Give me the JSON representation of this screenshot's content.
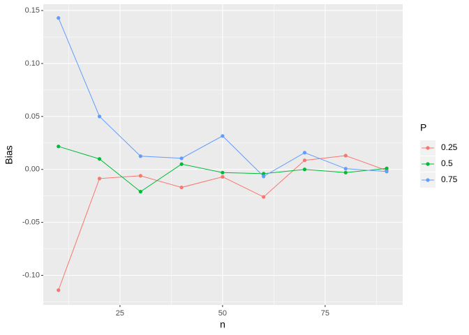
{
  "chart_data": {
    "type": "line",
    "x_label": "n",
    "y_label": "Bias",
    "legend_title": "P",
    "x": [
      10,
      20,
      30,
      40,
      50,
      60,
      70,
      80,
      90
    ],
    "series": [
      {
        "name": "0.25",
        "color": "#F8766D",
        "values": [
          -0.114,
          -0.0086,
          -0.006,
          -0.017,
          -0.007,
          -0.026,
          0.0086,
          0.013,
          -0.001
        ]
      },
      {
        "name": "0.5",
        "color": "#00BA38",
        "values": [
          0.0217,
          0.0099,
          -0.021,
          0.005,
          -0.003,
          -0.004,
          0.0,
          -0.003,
          0.001
        ]
      },
      {
        "name": "0.75",
        "color": "#619CFF",
        "values": [
          0.143,
          0.05,
          0.0125,
          0.0105,
          0.0316,
          -0.0066,
          0.0158,
          0.0007,
          -0.002
        ]
      }
    ],
    "xlim": [
      6.3,
      93.9
    ],
    "xticks": [
      25,
      50,
      75
    ],
    "ylim": [
      -0.128,
      0.156
    ],
    "yticks": [
      {
        "value": -0.1,
        "label": "-0.10"
      },
      {
        "value": -0.05,
        "label": "-0.05"
      },
      {
        "value": 0,
        "label": "0.00"
      },
      {
        "value": 0.05,
        "label": "0.05"
      },
      {
        "value": 0.1,
        "label": "0.10"
      },
      {
        "value": 0.15,
        "label": "0.15"
      }
    ],
    "grid": true,
    "legend_position": "right"
  }
}
